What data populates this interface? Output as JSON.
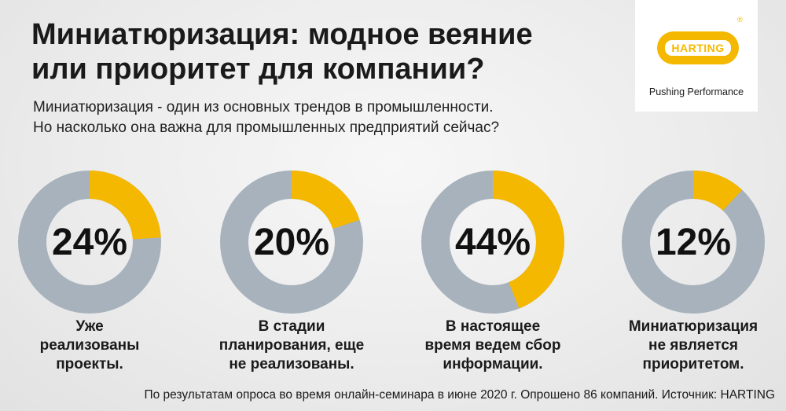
{
  "header": {
    "title_line1": "Миниатюризация: модное веяние",
    "title_line2": "или приоритет для компании?",
    "subtitle_line1": "Миниатюризация - один из основных трендов в промышленности.",
    "subtitle_line2": "Но насколько она важна для промышленных предприятий сейчас?"
  },
  "logo": {
    "brand": "HARTING",
    "registered": "®",
    "tagline": "Pushing Performance"
  },
  "colors": {
    "accent": "#f5b800",
    "remainder": "#a7b2bc"
  },
  "chart_data": {
    "type": "pie",
    "charts": [
      {
        "value": 24,
        "value_label": "24%",
        "label_lines": [
          "Уже",
          "реализованы",
          "проекты."
        ]
      },
      {
        "value": 20,
        "value_label": "20%",
        "label_lines": [
          "В стадии",
          "планирования, еще",
          "не реализованы."
        ]
      },
      {
        "value": 44,
        "value_label": "44%",
        "label_lines": [
          "В настоящее",
          "время ведем сбор",
          "информации."
        ]
      },
      {
        "value": 12,
        "value_label": "12%",
        "label_lines": [
          "Миниатюризация",
          "не является",
          "приоритетом."
        ]
      }
    ]
  },
  "footer": {
    "source": "По результатам опроса во время онлайн-семинара в июне 2020 г. Опрошено 86 компаний. Источник: HARTING"
  }
}
